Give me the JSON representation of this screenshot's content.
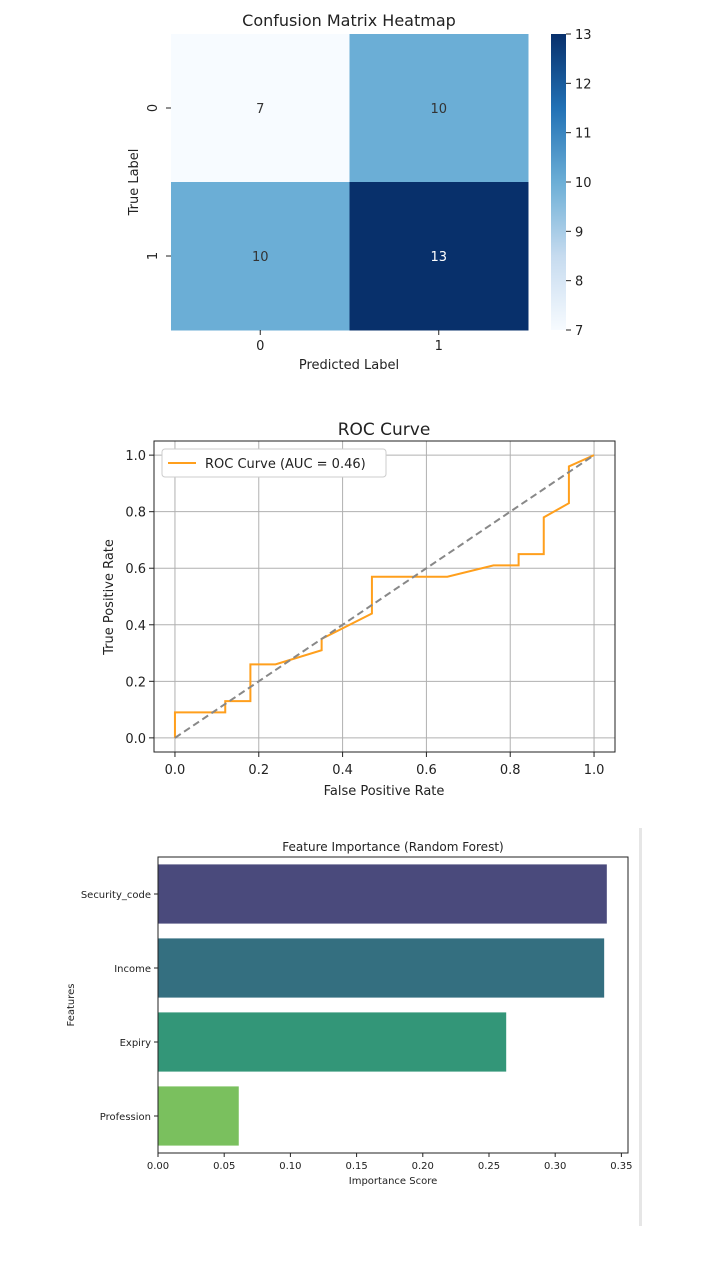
{
  "chart_data": [
    {
      "type": "heatmap",
      "title": "Confusion Matrix Heatmap",
      "xlabel": "Predicted Label",
      "ylabel": "True Label",
      "x_categories": [
        "0",
        "1"
      ],
      "y_categories": [
        "0",
        "1"
      ],
      "matrix": [
        [
          7,
          10
        ],
        [
          10,
          13
        ]
      ],
      "colorbar": {
        "min": 7,
        "max": 13,
        "ticks": [
          7,
          8,
          9,
          10,
          11,
          12,
          13
        ],
        "colormap": "Blues"
      }
    },
    {
      "type": "line",
      "title": "ROC Curve",
      "xlabel": "False Positive Rate",
      "ylabel": "True Positive Rate",
      "xlim": [
        -0.05,
        1.05
      ],
      "ylim": [
        -0.05,
        1.05
      ],
      "xticks": [
        "0.0",
        "0.2",
        "0.4",
        "0.6",
        "0.8",
        "1.0"
      ],
      "yticks": [
        "0.0",
        "0.2",
        "0.4",
        "0.6",
        "0.8",
        "1.0"
      ],
      "grid": true,
      "legend": "top-left",
      "series": [
        {
          "name": "ROC Curve (AUC = 0.46)",
          "color": "#ff9f1c",
          "x": [
            0,
            0,
            0.12,
            0.12,
            0.18,
            0.18,
            0.24,
            0.35,
            0.35,
            0.47,
            0.47,
            0.65,
            0.76,
            0.82,
            0.82,
            0.88,
            0.88,
            0.94,
            0.94,
            1.0
          ],
          "y": [
            0,
            0.09,
            0.09,
            0.13,
            0.13,
            0.26,
            0.26,
            0.31,
            0.35,
            0.44,
            0.57,
            0.57,
            0.61,
            0.61,
            0.65,
            0.65,
            0.78,
            0.83,
            0.96,
            1.0
          ]
        },
        {
          "name": "",
          "color": "#888888",
          "dashed": true,
          "x": [
            0,
            1
          ],
          "y": [
            0,
            1
          ]
        }
      ]
    },
    {
      "type": "bar",
      "orientation": "horizontal",
      "title": "Feature Importance (Random Forest)",
      "xlabel": "Importance Score",
      "ylabel": "Features",
      "categories": [
        "Security_code",
        "Income",
        "Expiry",
        "Profession"
      ],
      "values": [
        0.339,
        0.337,
        0.263,
        0.061
      ],
      "colors": [
        "#4a4a7c",
        "#346f80",
        "#339678",
        "#7ac05e"
      ],
      "xlim": [
        0,
        0.355
      ],
      "xticks": [
        "0.00",
        "0.05",
        "0.10",
        "0.15",
        "0.20",
        "0.25",
        "0.30",
        "0.35"
      ]
    }
  ]
}
